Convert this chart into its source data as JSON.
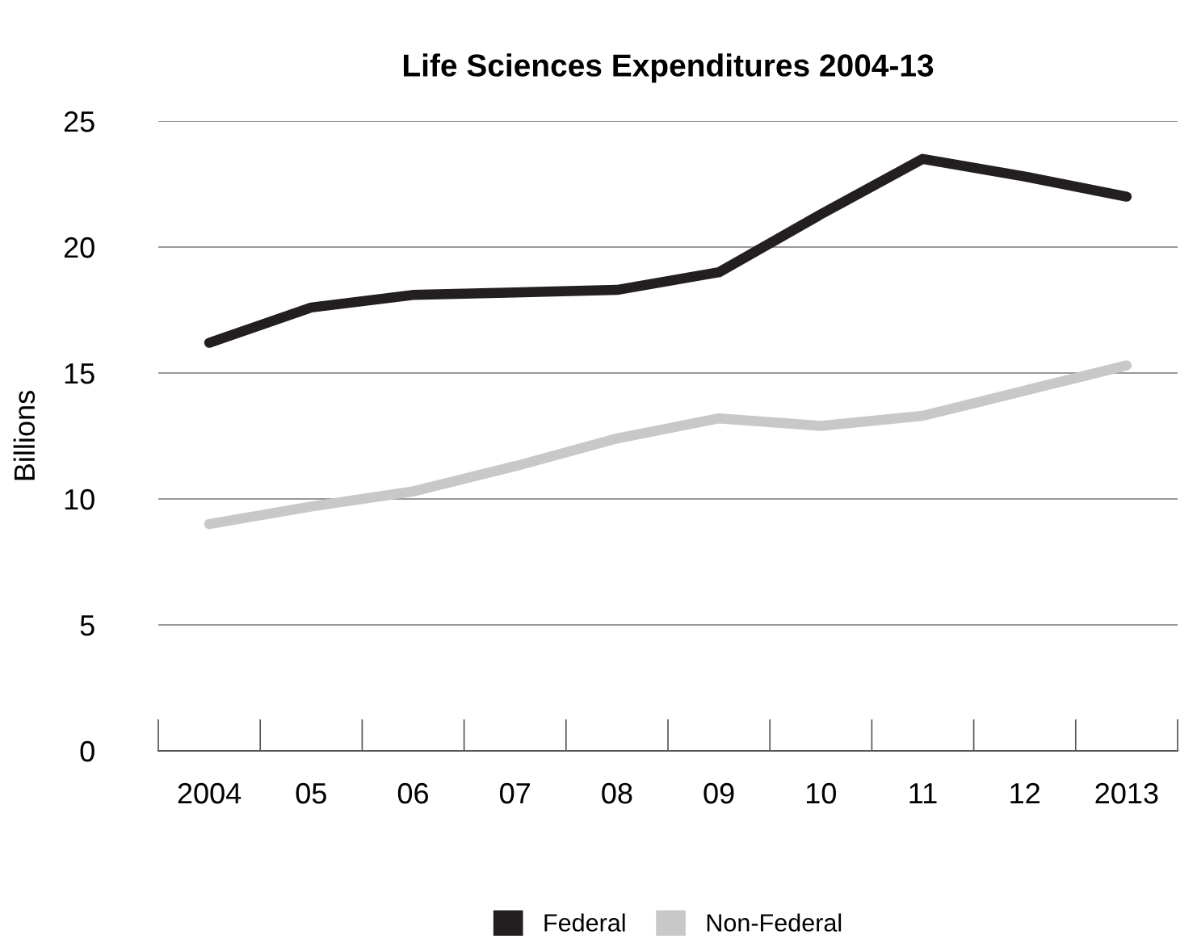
{
  "chart_data": {
    "type": "line",
    "title": "Life Sciences Expenditures 2004-13",
    "ylabel": "Billions",
    "categories": [
      "2004",
      "05",
      "06",
      "07",
      "08",
      "09",
      "10",
      "11",
      "12",
      "2013"
    ],
    "series": [
      {
        "name": "Federal",
        "color": "#231f20",
        "values": [
          16.2,
          17.6,
          18.1,
          18.2,
          18.3,
          19.0,
          21.3,
          23.5,
          22.8,
          22.0
        ]
      },
      {
        "name": "Non-Federal",
        "color": "#c8c8c8",
        "values": [
          9.0,
          9.7,
          10.3,
          11.3,
          12.4,
          13.2,
          12.9,
          13.3,
          14.3,
          15.3
        ]
      }
    ],
    "ylim": [
      0,
      25
    ],
    "yticks": [
      0,
      5,
      10,
      15,
      20,
      25
    ],
    "grid": "y",
    "legend": "bottom",
    "marker": "none",
    "line_style": "solid"
  }
}
